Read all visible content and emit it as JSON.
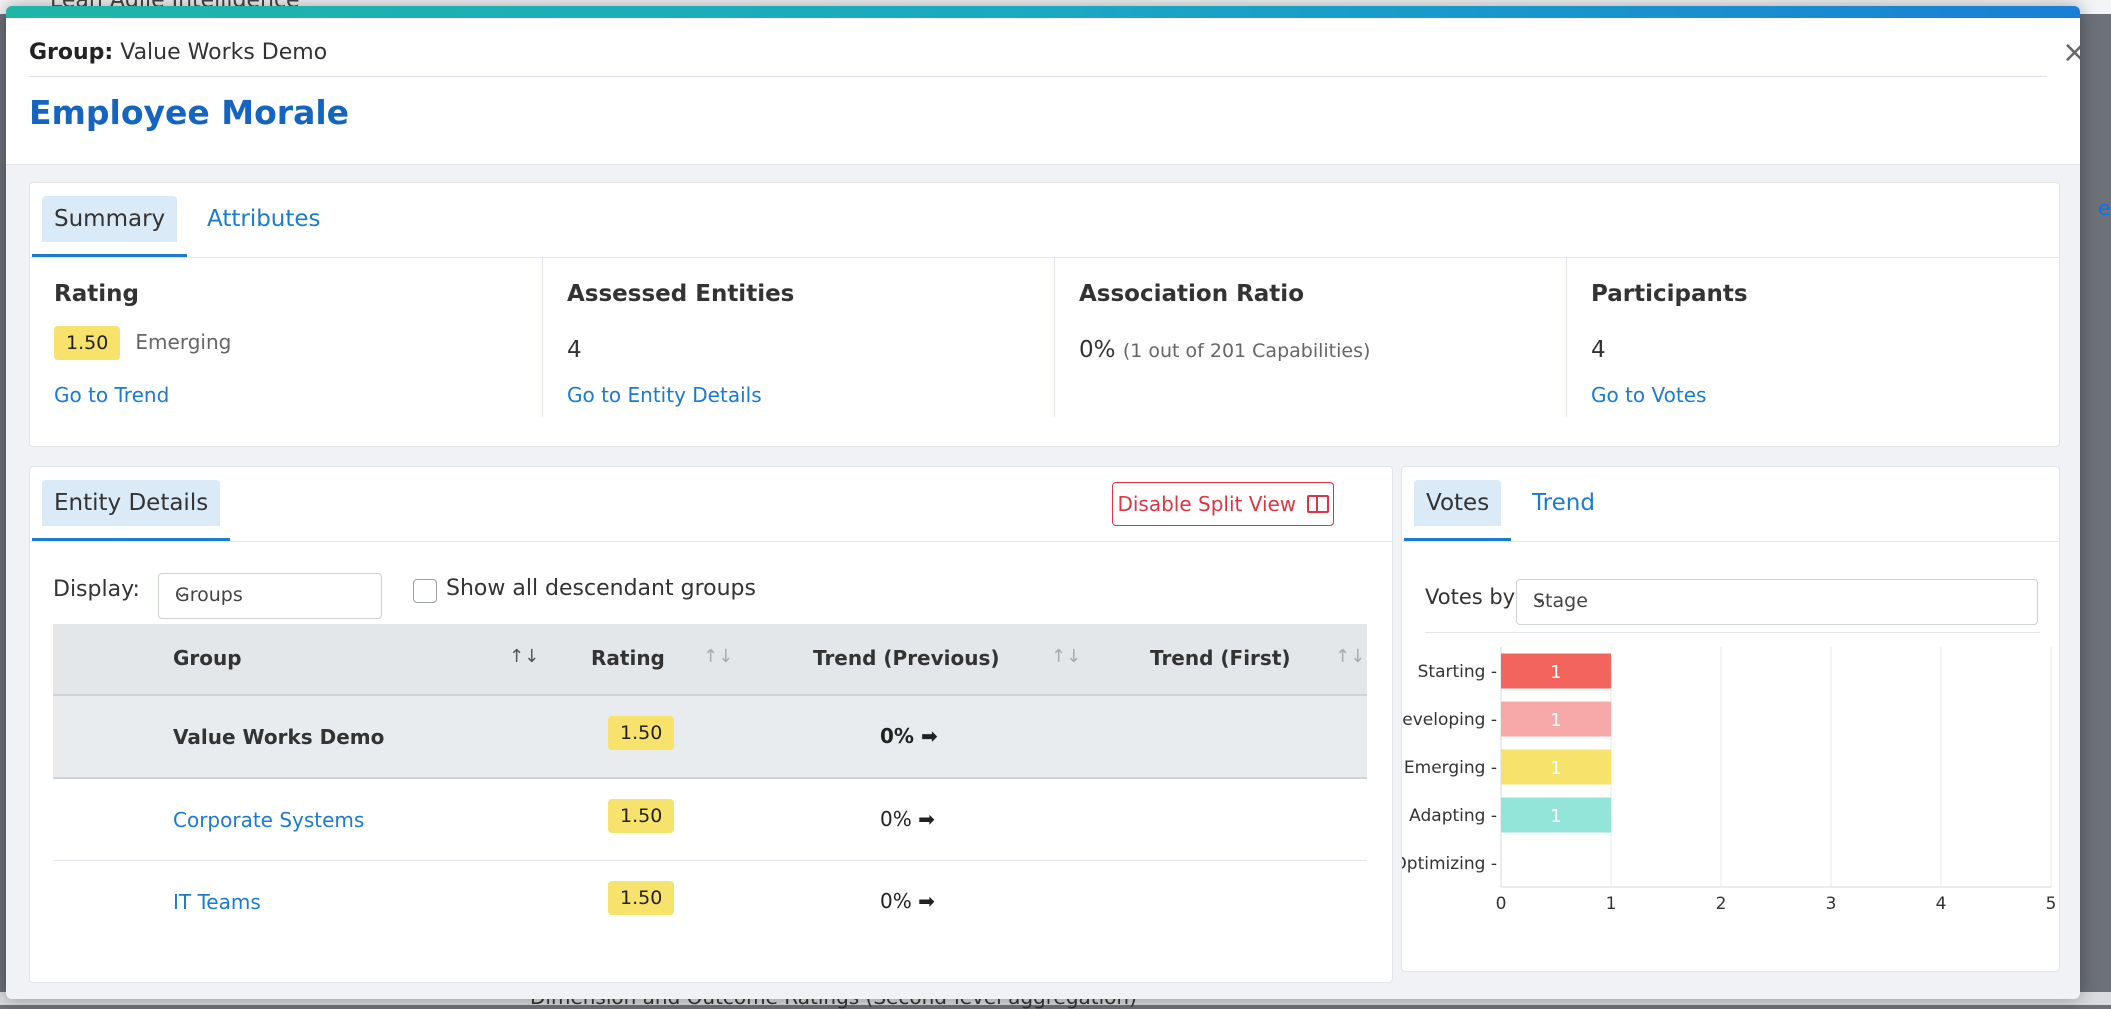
{
  "background": {
    "app_title": "Lean Agile Intelligence",
    "bottom_text": "Dimension and Outcome Ratings (Second-level aggregation)",
    "right_letter": "e"
  },
  "header": {
    "group_label": "Group:",
    "group_name": "Value Works Demo",
    "title": "Employee Morale",
    "close_symbol": "×"
  },
  "summary_tabs": [
    {
      "label": "Summary",
      "active": true
    },
    {
      "label": "Attributes",
      "active": false
    }
  ],
  "summary": {
    "rating": {
      "heading": "Rating",
      "value": "1.50",
      "stage": "Emerging",
      "link": "Go to Trend"
    },
    "assessed": {
      "heading": "Assessed Entities",
      "value": "4",
      "link": "Go to Entity Details"
    },
    "association": {
      "heading": "Association Ratio",
      "value": "0%",
      "detail": "(1 out of 201 Capabilities)"
    },
    "participants": {
      "heading": "Participants",
      "value": "4",
      "link": "Go to Votes"
    }
  },
  "entity": {
    "tab": "Entity Details",
    "split_button": "Disable Split View",
    "display_label": "Display:",
    "display_value": "Groups",
    "checkbox_label": "Show all descendant groups",
    "columns": [
      "Group",
      "Rating",
      "Trend (Previous)",
      "Trend (First)"
    ],
    "rows": [
      {
        "group": "Value Works Demo",
        "rating": "1.50",
        "trend_previous": "0%",
        "trend_first": ""
      },
      {
        "group": "Corporate Systems",
        "rating": "1.50",
        "trend_previous": "0%",
        "trend_first": ""
      },
      {
        "group": "IT Teams",
        "rating": "1.50",
        "trend_previous": "0%",
        "trend_first": ""
      }
    ]
  },
  "votes": {
    "tabs": [
      {
        "label": "Votes",
        "active": true
      },
      {
        "label": "Trend",
        "active": false
      }
    ],
    "votes_by_label": "Votes by:",
    "votes_by_value": "Stage"
  },
  "colors": {
    "starting": "#f4645f",
    "developing": "#f6a9a8",
    "emerging": "#f7e26b",
    "adapting": "#93e5d9"
  },
  "chart_data": {
    "type": "bar",
    "orientation": "horizontal",
    "categories": [
      "Starting",
      "Developing",
      "Emerging",
      "Adapting",
      "Optimizing"
    ],
    "values": [
      1,
      1,
      1,
      1,
      0
    ],
    "data_labels": [
      "1",
      "1",
      "1",
      "1",
      ""
    ],
    "xlim": [
      0,
      5
    ],
    "xticks": [
      "0",
      "1",
      "2",
      "3",
      "4",
      "5"
    ],
    "grid": true
  }
}
